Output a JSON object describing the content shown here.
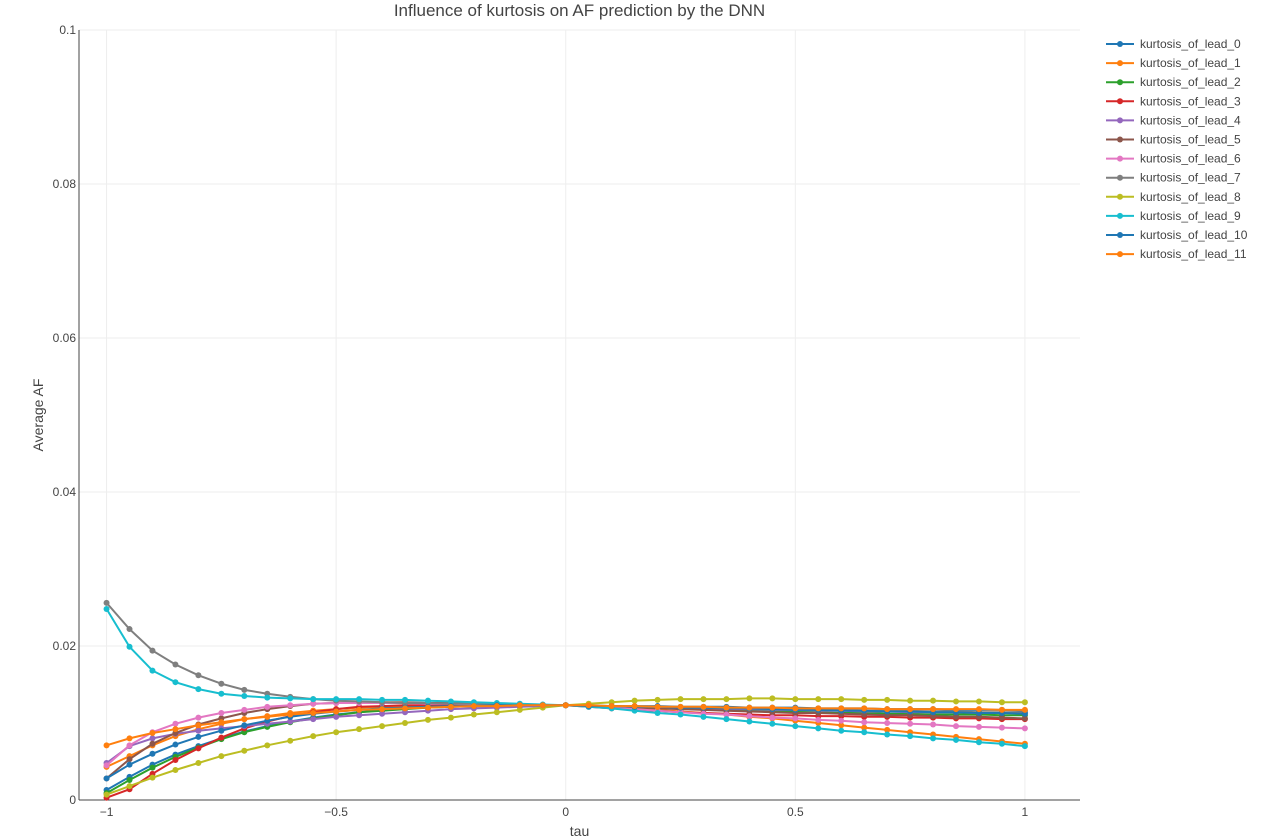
{
  "chart_data": {
    "type": "line",
    "title": "Influence of kurtosis on AF prediction by the DNN",
    "xlabel": "tau",
    "ylabel": "Average AF",
    "xlim": [
      -1.06,
      1.12
    ],
    "ylim": [
      0,
      0.1
    ],
    "xticks": [
      -1,
      -0.5,
      0,
      0.5,
      1
    ],
    "xtick_labels": [
      "−1",
      "−0.5",
      "0",
      "0.5",
      "1"
    ],
    "yticks": [
      0,
      0.02,
      0.04,
      0.06,
      0.08,
      0.1
    ],
    "ytick_labels": [
      "0",
      "0.02",
      "0.04",
      "0.06",
      "0.08",
      "0.1"
    ],
    "grid": true,
    "legend_position": "top-right",
    "x": [
      -1,
      -0.95,
      -0.9,
      -0.85,
      -0.8,
      -0.75,
      -0.7,
      -0.65,
      -0.6,
      -0.55,
      -0.5,
      -0.45,
      -0.4,
      -0.35,
      -0.3,
      -0.25,
      -0.2,
      -0.15,
      -0.1,
      -0.05,
      0,
      0.05,
      0.1,
      0.15,
      0.2,
      0.25,
      0.3,
      0.35,
      0.4,
      0.45,
      0.5,
      0.55,
      0.6,
      0.65,
      0.7,
      0.75,
      0.8,
      0.85,
      0.9,
      0.95,
      1
    ],
    "series": [
      {
        "name": "kurtosis_of_lead_0",
        "color": "#1f77b4",
        "values": [
          0.0013,
          0.003,
          0.0046,
          0.0059,
          0.007,
          0.008,
          0.0089,
          0.0096,
          0.0102,
          0.0107,
          0.0111,
          0.0114,
          0.0117,
          0.0119,
          0.012,
          0.0121,
          0.0122,
          0.0122,
          0.0123,
          0.0123,
          0.0123,
          0.0123,
          0.0122,
          0.0122,
          0.0122,
          0.0121,
          0.0121,
          0.0121,
          0.012,
          0.012,
          0.012,
          0.0119,
          0.0119,
          0.0119,
          0.0118,
          0.0118,
          0.0118,
          0.0117,
          0.0117,
          0.0117,
          0.0116
        ]
      },
      {
        "name": "kurtosis_of_lead_1",
        "color": "#ff7f0e",
        "values": [
          0.0043,
          0.0057,
          0.0071,
          0.0083,
          0.0092,
          0.0099,
          0.0105,
          0.0109,
          0.0113,
          0.0116,
          0.0118,
          0.012,
          0.0121,
          0.0122,
          0.0123,
          0.0123,
          0.0123,
          0.0123,
          0.0123,
          0.0123,
          0.0123,
          0.0122,
          0.0121,
          0.0119,
          0.0117,
          0.0115,
          0.0113,
          0.0111,
          0.0108,
          0.0106,
          0.0103,
          0.01,
          0.0097,
          0.0094,
          0.0091,
          0.0088,
          0.0085,
          0.0082,
          0.0079,
          0.0076,
          0.0073
        ]
      },
      {
        "name": "kurtosis_of_lead_2",
        "color": "#2ca02c",
        "values": [
          0.0009,
          0.0026,
          0.0042,
          0.0056,
          0.0068,
          0.0079,
          0.0088,
          0.0095,
          0.0101,
          0.0106,
          0.011,
          0.0114,
          0.0116,
          0.0118,
          0.012,
          0.0121,
          0.0122,
          0.0122,
          0.0123,
          0.0123,
          0.0123,
          0.0122,
          0.0122,
          0.0121,
          0.012,
          0.0119,
          0.0118,
          0.0117,
          0.0116,
          0.0115,
          0.0115,
          0.0114,
          0.0113,
          0.0113,
          0.0112,
          0.0112,
          0.0111,
          0.0111,
          0.0111,
          0.011,
          0.011
        ]
      },
      {
        "name": "kurtosis_of_lead_3",
        "color": "#d62728",
        "values": [
          0.0003,
          0.0014,
          0.0034,
          0.0052,
          0.0067,
          0.0081,
          0.0093,
          0.0102,
          0.0109,
          0.0114,
          0.0118,
          0.0121,
          0.0122,
          0.0123,
          0.0123,
          0.0123,
          0.0123,
          0.0123,
          0.0123,
          0.0123,
          0.0123,
          0.0121,
          0.0119,
          0.0117,
          0.0116,
          0.0114,
          0.0113,
          0.0112,
          0.0111,
          0.011,
          0.011,
          0.0109,
          0.0109,
          0.0108,
          0.0108,
          0.0107,
          0.0107,
          0.0106,
          0.0106,
          0.0105,
          0.0105
        ]
      },
      {
        "name": "kurtosis_of_lead_4",
        "color": "#9467bd",
        "values": [
          0.0048,
          0.007,
          0.008,
          0.0086,
          0.009,
          0.0093,
          0.0096,
          0.0099,
          0.0102,
          0.0105,
          0.0108,
          0.011,
          0.0112,
          0.0114,
          0.0116,
          0.0118,
          0.0119,
          0.012,
          0.0121,
          0.0122,
          0.0123,
          0.0122,
          0.0121,
          0.0121,
          0.012,
          0.0119,
          0.0119,
          0.0118,
          0.0118,
          0.0117,
          0.0117,
          0.0116,
          0.0116,
          0.0115,
          0.0115,
          0.0114,
          0.0114,
          0.0114,
          0.0113,
          0.0113,
          0.0113
        ]
      },
      {
        "name": "kurtosis_of_lead_5",
        "color": "#8c564b",
        "values": [
          0.0028,
          0.0053,
          0.0073,
          0.0087,
          0.0098,
          0.0106,
          0.0113,
          0.0118,
          0.0122,
          0.0125,
          0.0126,
          0.0127,
          0.0127,
          0.0127,
          0.0126,
          0.0126,
          0.0125,
          0.0124,
          0.0124,
          0.0123,
          0.0123,
          0.0122,
          0.0121,
          0.012,
          0.0119,
          0.0118,
          0.0117,
          0.0116,
          0.0115,
          0.0114,
          0.0113,
          0.0113,
          0.0112,
          0.0111,
          0.011,
          0.011,
          0.0109,
          0.0108,
          0.0108,
          0.0107,
          0.0106
        ]
      },
      {
        "name": "kurtosis_of_lead_6",
        "color": "#e377c2",
        "values": [
          0.0045,
          0.0071,
          0.0088,
          0.0099,
          0.0107,
          0.0113,
          0.0117,
          0.0121,
          0.0123,
          0.0125,
          0.0126,
          0.0126,
          0.0126,
          0.0126,
          0.0125,
          0.0125,
          0.0124,
          0.0124,
          0.0123,
          0.0123,
          0.0123,
          0.0122,
          0.012,
          0.0118,
          0.0116,
          0.0114,
          0.0112,
          0.0111,
          0.0109,
          0.0107,
          0.0106,
          0.0104,
          0.0103,
          0.0101,
          0.01,
          0.0099,
          0.0098,
          0.0096,
          0.0095,
          0.0094,
          0.0093
        ]
      },
      {
        "name": "kurtosis_of_lead_7",
        "color": "#7f7f7f",
        "values": [
          0.0256,
          0.0222,
          0.0194,
          0.0176,
          0.0162,
          0.0151,
          0.0143,
          0.0138,
          0.0134,
          0.0131,
          0.0129,
          0.0128,
          0.0127,
          0.0126,
          0.0126,
          0.0125,
          0.0125,
          0.0124,
          0.0124,
          0.0123,
          0.0123,
          0.0122,
          0.0122,
          0.0121,
          0.0121,
          0.012,
          0.012,
          0.0119,
          0.0119,
          0.0118,
          0.0118,
          0.0117,
          0.0117,
          0.0116,
          0.0116,
          0.0116,
          0.0115,
          0.0115,
          0.0114,
          0.0114,
          0.0114
        ]
      },
      {
        "name": "kurtosis_of_lead_8",
        "color": "#bcbd22",
        "values": [
          0.0007,
          0.0018,
          0.0029,
          0.0039,
          0.0048,
          0.0057,
          0.0064,
          0.0071,
          0.0077,
          0.0083,
          0.0088,
          0.0092,
          0.0096,
          0.01,
          0.0104,
          0.0107,
          0.0111,
          0.0114,
          0.0117,
          0.012,
          0.0123,
          0.0125,
          0.0127,
          0.0129,
          0.013,
          0.0131,
          0.0131,
          0.0131,
          0.0132,
          0.0132,
          0.0131,
          0.0131,
          0.0131,
          0.013,
          0.013,
          0.0129,
          0.0129,
          0.0128,
          0.0128,
          0.0127,
          0.0127
        ]
      },
      {
        "name": "kurtosis_of_lead_9",
        "color": "#17becf",
        "values": [
          0.0248,
          0.0199,
          0.0168,
          0.0153,
          0.0144,
          0.0138,
          0.0135,
          0.0133,
          0.0132,
          0.0131,
          0.0131,
          0.0131,
          0.013,
          0.013,
          0.0129,
          0.0128,
          0.0127,
          0.0126,
          0.0125,
          0.0124,
          0.0123,
          0.0121,
          0.0119,
          0.0116,
          0.0113,
          0.0111,
          0.0108,
          0.0105,
          0.0102,
          0.0099,
          0.0096,
          0.0093,
          0.009,
          0.0088,
          0.0085,
          0.0083,
          0.008,
          0.0078,
          0.0075,
          0.0073,
          0.007
        ]
      },
      {
        "name": "kurtosis_of_lead_10",
        "color": "#1f77b4",
        "values": [
          0.0028,
          0.0046,
          0.006,
          0.0072,
          0.0082,
          0.009,
          0.0097,
          0.0103,
          0.0108,
          0.0112,
          0.0115,
          0.0117,
          0.0119,
          0.012,
          0.0121,
          0.0122,
          0.0122,
          0.0123,
          0.0123,
          0.0123,
          0.0123,
          0.0122,
          0.0122,
          0.0121,
          0.0121,
          0.012,
          0.012,
          0.0119,
          0.0119,
          0.0118,
          0.0117,
          0.0117,
          0.0116,
          0.0116,
          0.0115,
          0.0115,
          0.0114,
          0.0114,
          0.0113,
          0.0113,
          0.0112
        ]
      },
      {
        "name": "kurtosis_of_lead_11",
        "color": "#ff7f0e",
        "values": [
          0.0071,
          0.008,
          0.0087,
          0.0092,
          0.0097,
          0.0101,
          0.0105,
          0.0108,
          0.0111,
          0.0113,
          0.0115,
          0.0117,
          0.0118,
          0.0119,
          0.012,
          0.0121,
          0.0122,
          0.0122,
          0.0123,
          0.0123,
          0.0123,
          0.0123,
          0.0122,
          0.0122,
          0.0121,
          0.0121,
          0.0121,
          0.012,
          0.012,
          0.012,
          0.0119,
          0.0119,
          0.0119,
          0.0119,
          0.0118,
          0.0118,
          0.0118,
          0.0118,
          0.0118,
          0.0117,
          0.0117
        ]
      }
    ]
  }
}
